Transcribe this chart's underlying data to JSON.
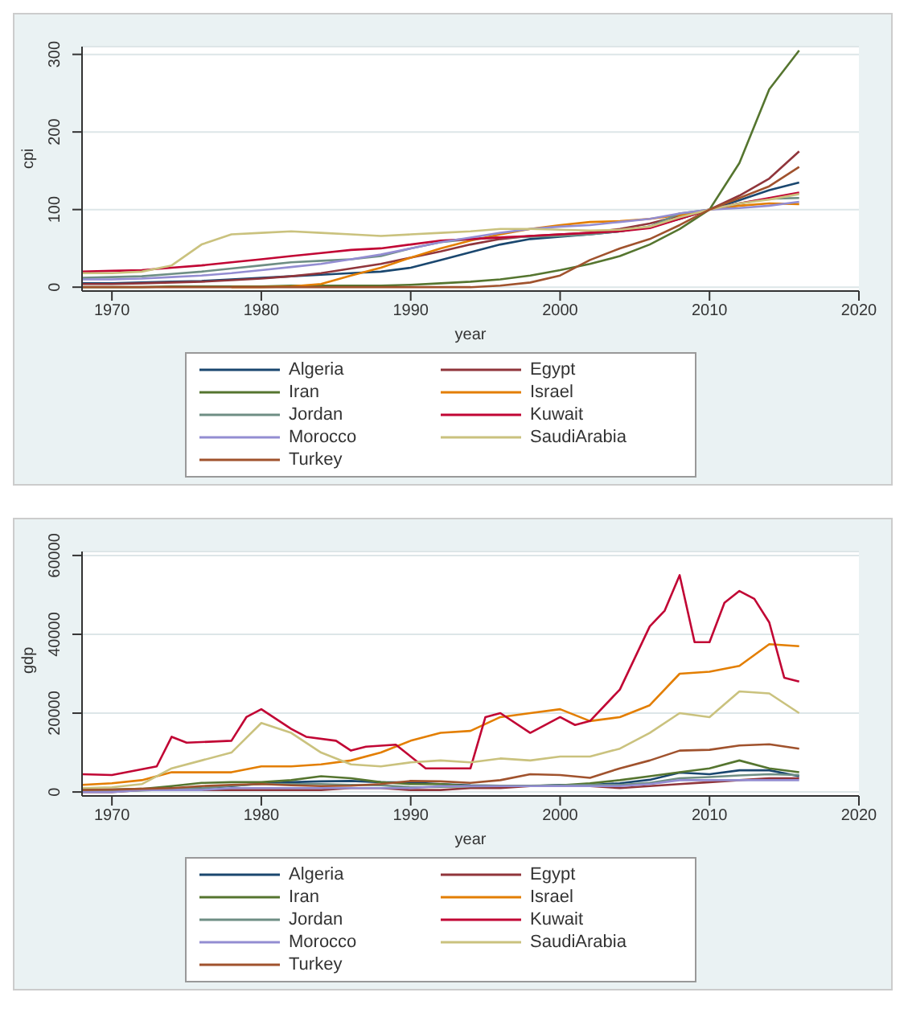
{
  "chart_data": [
    {
      "type": "line",
      "xlabel": "year",
      "ylabel": "cpi",
      "x": [
        1968,
        1970,
        1972,
        1974,
        1976,
        1978,
        1980,
        1982,
        1984,
        1986,
        1988,
        1990,
        1992,
        1994,
        1996,
        1998,
        2000,
        2002,
        2004,
        2006,
        2008,
        2010,
        2012,
        2014,
        2016
      ],
      "xlim": [
        1968,
        2020
      ],
      "xticks": [
        1970,
        1980,
        1990,
        2000,
        2010,
        2020
      ],
      "ylim": [
        -5,
        310
      ],
      "yticks": [
        0,
        100,
        200,
        300
      ],
      "grid": "y",
      "legend": "bottom",
      "line_style": "solid",
      "marker": "none",
      "series": [
        {
          "name": "Algeria",
          "color": "#1a476f",
          "values": [
            5,
            5,
            6,
            7,
            8,
            10,
            12,
            14,
            16,
            18,
            20,
            25,
            35,
            45,
            55,
            62,
            65,
            68,
            72,
            78,
            88,
            100,
            112,
            125,
            135
          ]
        },
        {
          "name": "Egypt",
          "color": "#90353b",
          "values": [
            4,
            4,
            5,
            6,
            7,
            9,
            11,
            14,
            18,
            24,
            30,
            38,
            46,
            55,
            62,
            66,
            68,
            70,
            75,
            82,
            92,
            100,
            118,
            140,
            175
          ]
        },
        {
          "name": "Iran",
          "color": "#55752f",
          "values": [
            0,
            0,
            0,
            1,
            1,
            1,
            1,
            2,
            2,
            2,
            2,
            3,
            5,
            7,
            10,
            15,
            22,
            30,
            40,
            55,
            75,
            100,
            160,
            255,
            305
          ]
        },
        {
          "name": "Israel",
          "color": "#e37e00",
          "values": [
            null,
            null,
            null,
            null,
            null,
            0,
            0,
            1,
            4,
            15,
            25,
            38,
            50,
            60,
            68,
            75,
            80,
            84,
            85,
            88,
            93,
            100,
            105,
            108,
            107
          ]
        },
        {
          "name": "Jordan",
          "color": "#6e8e84",
          "values": [
            12,
            13,
            14,
            17,
            20,
            24,
            28,
            32,
            34,
            36,
            40,
            50,
            58,
            62,
            64,
            65,
            66,
            68,
            72,
            78,
            95,
            100,
            108,
            114,
            115
          ]
        },
        {
          "name": "Kuwait",
          "color": "#c10534",
          "values": [
            20,
            21,
            22,
            25,
            28,
            32,
            36,
            40,
            44,
            48,
            50,
            55,
            60,
            62,
            64,
            66,
            68,
            70,
            72,
            76,
            88,
            100,
            108,
            115,
            122
          ]
        },
        {
          "name": "Morocco",
          "color": "#938dd2",
          "values": [
            10,
            10,
            11,
            13,
            15,
            18,
            22,
            26,
            30,
            36,
            42,
            50,
            58,
            64,
            70,
            75,
            78,
            80,
            84,
            88,
            95,
            100,
            102,
            105,
            110
          ]
        },
        {
          "name": "SaudiArabia",
          "color": "#cac27e",
          "values": [
            18,
            18,
            20,
            28,
            55,
            68,
            70,
            72,
            70,
            68,
            66,
            68,
            70,
            72,
            75,
            75,
            74,
            73,
            74,
            78,
            90,
            100,
            108,
            113,
            120
          ]
        },
        {
          "name": "Turkey",
          "color": "#a0522d",
          "values": [
            0,
            0,
            0,
            0,
            0,
            0,
            0,
            0,
            0,
            0,
            0,
            0,
            0,
            0,
            2,
            6,
            15,
            35,
            50,
            62,
            80,
            100,
            115,
            130,
            155
          ]
        }
      ]
    },
    {
      "type": "line",
      "xlabel": "year",
      "ylabel": "gdp",
      "x": [
        1968,
        1970,
        1972,
        1974,
        1976,
        1978,
        1980,
        1982,
        1984,
        1986,
        1988,
        1990,
        1992,
        1994,
        1996,
        1998,
        2000,
        2002,
        2004,
        2006,
        2008,
        2010,
        2012,
        2014,
        2016
      ],
      "xlim": [
        1968,
        2020
      ],
      "xticks": [
        1970,
        1980,
        1990,
        2000,
        2010,
        2020
      ],
      "ylim": [
        -1000,
        61000
      ],
      "yticks": [
        0,
        20000,
        40000,
        60000
      ],
      "grid": "y",
      "legend": "bottom",
      "line_style": "solid",
      "marker": "none",
      "series": [
        {
          "name": "Algeria",
          "color": "#1a476f",
          "values": [
            500,
            500,
            500,
            1000,
            1000,
            1500,
            2100,
            2500,
            2700,
            2800,
            2500,
            2400,
            2000,
            1700,
            1600,
            1500,
            1800,
            1800,
            2200,
            3100,
            4900,
            4500,
            5500,
            5500,
            4000
          ]
        },
        {
          "name": "Egypt",
          "color": "#90353b",
          "values": [
            0,
            0,
            500,
            500,
            500,
            500,
            500,
            500,
            500,
            1000,
            1000,
            500,
            500,
            1000,
            1000,
            1500,
            1500,
            1500,
            1000,
            1500,
            2000,
            2500,
            3000,
            3500,
            3500
          ]
        },
        {
          "name": "Iran",
          "color": "#55752f",
          "values": [
            500,
            600,
            800,
            1500,
            2300,
            2500,
            2500,
            3000,
            4000,
            3500,
            2500,
            2000,
            2000,
            1500,
            1600,
            1600,
            1700,
            2200,
            3000,
            4000,
            5000,
            6000,
            8000,
            6000,
            5000
          ]
        },
        {
          "name": "Israel",
          "color": "#e37e00",
          "values": [
            1800,
            2200,
            3000,
            5000,
            5000,
            5000,
            6500,
            6500,
            7000,
            8000,
            10000,
            13000,
            15000,
            15500,
            19000,
            20000,
            21000,
            18000,
            19000,
            22000,
            30000,
            30500,
            32000,
            37500,
            37000
          ]
        },
        {
          "name": "Jordan",
          "color": "#6e8e84",
          "values": [
            300,
            400,
            400,
            700,
            1000,
            1600,
            2000,
            2000,
            2000,
            1800,
            1700,
            1200,
            1300,
            1400,
            1500,
            1500,
            1700,
            1800,
            1800,
            2300,
            3500,
            3800,
            4200,
            4500,
            4300
          ]
        },
        {
          "name": "Kuwait",
          "color": "#c10534",
          "x": [
            1968,
            1970,
            1973,
            1974,
            1975,
            1978,
            1979,
            1980,
            1982,
            1983,
            1985,
            1986,
            1987,
            1989,
            1991,
            1994,
            1995,
            1996,
            1998,
            2000,
            2001,
            2002,
            2004,
            2006,
            2007,
            2008,
            2009,
            2010,
            2011,
            2012,
            2013,
            2014,
            2015,
            2016
          ],
          "values": [
            4500,
            4300,
            6500,
            14000,
            12500,
            13000,
            19000,
            21000,
            16000,
            14000,
            13000,
            10500,
            11500,
            12000,
            6000,
            6000,
            19000,
            20000,
            15000,
            19000,
            17000,
            18000,
            26000,
            42000,
            46000,
            55000,
            38000,
            38000,
            48000,
            51000,
            49000,
            43000,
            29000,
            28000
          ]
        },
        {
          "name": "Morocco",
          "color": "#938dd2",
          "values": [
            0,
            0,
            500,
            500,
            500,
            1000,
            1000,
            1000,
            1000,
            1000,
            1000,
            1000,
            1500,
            1500,
            1500,
            1500,
            1500,
            1500,
            1500,
            2000,
            3000,
            3000,
            3000,
            3000,
            3000
          ]
        },
        {
          "name": "SaudiArabia",
          "color": "#cac27e",
          "values": [
            1000,
            1200,
            2000,
            6000,
            8000,
            10000,
            17500,
            15000,
            10000,
            7000,
            6500,
            7500,
            8000,
            7500,
            8500,
            8000,
            9000,
            9000,
            11000,
            15000,
            20000,
            19000,
            25500,
            25000,
            20000
          ]
        },
        {
          "name": "Turkey",
          "color": "#a0522d",
          "values": [
            500,
            600,
            800,
            1000,
            1500,
            1800,
            2000,
            1700,
            1500,
            1600,
            2000,
            2800,
            2700,
            2300,
            3000,
            4500,
            4300,
            3600,
            6000,
            8000,
            10500,
            10700,
            11800,
            12100,
            11000
          ]
        }
      ]
    }
  ]
}
